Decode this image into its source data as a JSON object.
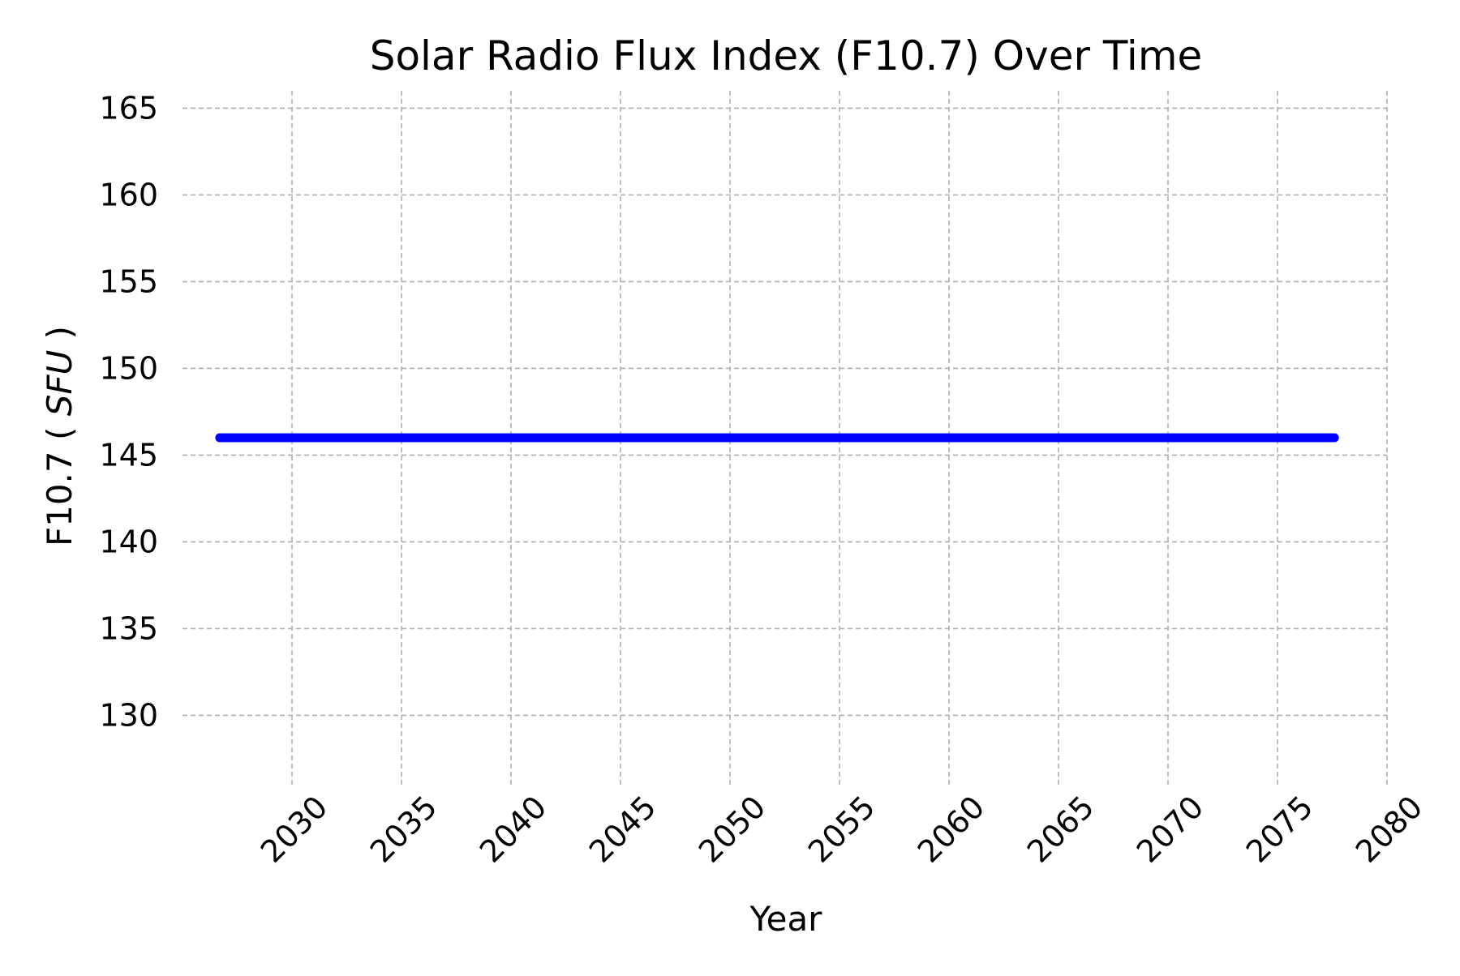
{
  "chart_data": {
    "type": "line",
    "title": "Solar Radio Flux Index (F10.7) Over Time",
    "xlabel": "Year",
    "ylabel": "F10.7",
    "ylabel_unit": "SFU",
    "xlim": [
      2025,
      2080
    ],
    "ylim": [
      126,
      166
    ],
    "x_ticks": [
      2030,
      2035,
      2040,
      2045,
      2050,
      2055,
      2060,
      2065,
      2070,
      2075,
      2080
    ],
    "y_ticks": [
      130,
      135,
      140,
      145,
      150,
      155,
      160,
      165
    ],
    "grid": true,
    "series": [
      {
        "color": "#0000ff",
        "x": [
          2026.7,
          2030,
          2035,
          2040,
          2045,
          2050,
          2055,
          2060,
          2065,
          2070,
          2075,
          2077.6
        ],
        "y": [
          146,
          146,
          146,
          146,
          146,
          146,
          146,
          146,
          146,
          146,
          146,
          146
        ]
      }
    ]
  }
}
